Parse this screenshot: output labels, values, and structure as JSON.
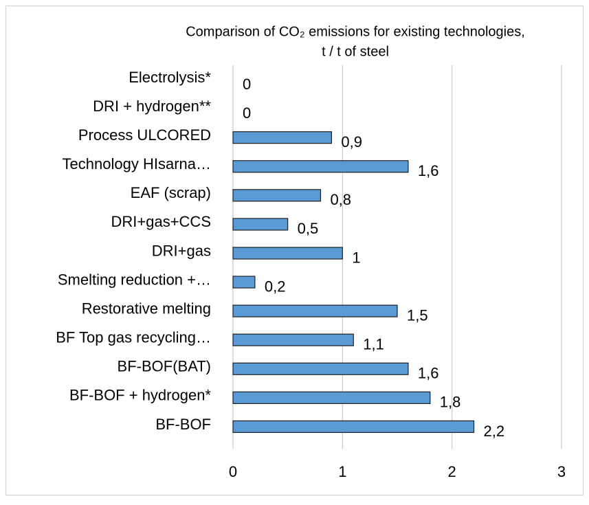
{
  "chart_data": {
    "type": "bar",
    "orientation": "horizontal",
    "title": [
      "Comparison of CO₂ emissions for existing technologies,",
      "t / t of steel"
    ],
    "categories": [
      "Electrolysis*",
      "DRI + hydrogen**",
      "Process ULCORED",
      "Technology HIsarna…",
      "EAF (scrap)",
      "DRI+gas+CCS",
      "DRI+gas",
      "Smelting reduction +…",
      "Restorative melting",
      "BF Top gas recycling…",
      "BF-BOF(BAT)",
      "BF-BOF + hydrogen*",
      "BF-BOF"
    ],
    "values": [
      0,
      0,
      0.9,
      1.6,
      0.8,
      0.5,
      1,
      0.2,
      1.5,
      1.1,
      1.6,
      1.8,
      2.2
    ],
    "value_labels": [
      "0",
      "0",
      "0,9",
      "1,6",
      "0,8",
      "0,5",
      "1",
      "0,2",
      "1,5",
      "1,1",
      "1,6",
      "1,8",
      "2,2"
    ],
    "color": "#5b9bd5",
    "xlim": [
      0,
      3
    ],
    "xticks": [
      0,
      1,
      2,
      3
    ],
    "grid": true
  }
}
